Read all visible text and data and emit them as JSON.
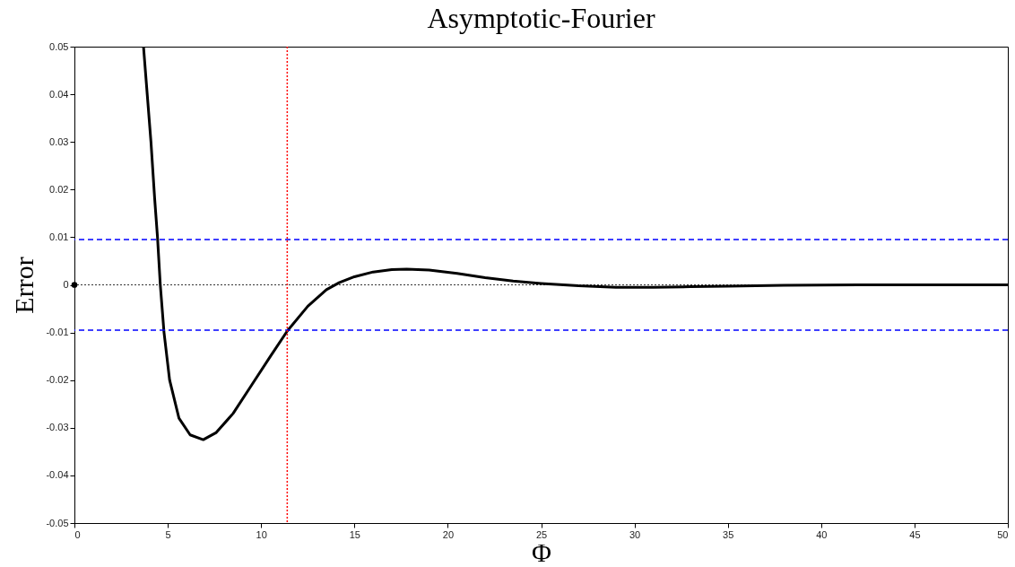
{
  "chart_data": {
    "type": "line",
    "title": "Asymptotic-Fourier",
    "xlabel": "Φ",
    "ylabel": "Error",
    "xlim": [
      0,
      50
    ],
    "ylim": [
      -0.05,
      0.05
    ],
    "xticks": [
      0,
      5,
      10,
      15,
      20,
      25,
      30,
      35,
      40,
      45,
      50
    ],
    "yticks": [
      -0.05,
      -0.04,
      -0.03,
      -0.02,
      -0.01,
      0,
      0.01,
      0.02,
      0.03,
      0.04,
      0.05
    ],
    "grid": false,
    "line_style": "solid",
    "series": [
      {
        "type": "line",
        "color": "#000000",
        "x": [
          3.7,
          3.9,
          4.1,
          4.3,
          4.45,
          4.6,
          4.8,
          5.1,
          5.6,
          6.2,
          6.9,
          7.6,
          8.5,
          9.5,
          10.5,
          11.4,
          12.5,
          13.5,
          14.2,
          15,
          16,
          17,
          17.8,
          19,
          20.5,
          22,
          23.5,
          25,
          27,
          29,
          31,
          33,
          35,
          38,
          42,
          46,
          50
        ],
        "values": [
          0.05,
          0.04,
          0.03,
          0.018,
          0.01,
          0.0,
          -0.01,
          -0.02,
          -0.028,
          -0.0315,
          -0.0325,
          -0.031,
          -0.027,
          -0.021,
          -0.015,
          -0.0097,
          -0.0045,
          -0.001,
          0.0005,
          0.0017,
          0.0027,
          0.0032,
          0.0033,
          0.0031,
          0.0024,
          0.0015,
          0.0008,
          0.0003,
          -0.0002,
          -0.0005,
          -0.0005,
          -0.0004,
          -0.0003,
          -0.0001,
          0.0,
          0.0,
          0.0
        ]
      },
      {
        "type": "scatter",
        "color": "#000000",
        "marker": "circle",
        "x": [
          0
        ],
        "values": [
          0
        ]
      }
    ],
    "ref_lines": [
      {
        "axis": "y",
        "value": 0.0095,
        "color": "#0000ff",
        "line_style": "dashed"
      },
      {
        "axis": "y",
        "value": -0.0095,
        "color": "#0000ff",
        "line_style": "dashed"
      },
      {
        "axis": "y",
        "value": 0,
        "color": "#000000",
        "line_style": "dotted"
      },
      {
        "axis": "x",
        "value": 11.4,
        "color": "#ff0000",
        "line_style": "dotted"
      }
    ]
  }
}
